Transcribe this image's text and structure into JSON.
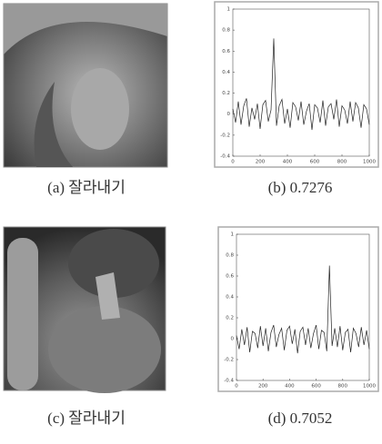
{
  "captions": [
    "(a)  잘라내기",
    "(b)  0.7276",
    "(c)  잘라내기",
    "(d)  0.7052"
  ],
  "chart_data": [
    {
      "type": "line",
      "x": [
        0,
        20,
        40,
        60,
        80,
        100,
        120,
        140,
        160,
        180,
        200,
        220,
        240,
        260,
        280,
        300,
        320,
        340,
        360,
        380,
        400,
        420,
        440,
        460,
        480,
        500,
        520,
        540,
        560,
        580,
        600,
        620,
        640,
        660,
        680,
        700,
        720,
        740,
        760,
        780,
        800,
        820,
        840,
        860,
        880,
        900,
        920,
        940,
        960,
        980,
        1000
      ],
      "values": [
        0.05,
        -0.08,
        0.12,
        -0.1,
        0.08,
        0.15,
        -0.12,
        0.06,
        -0.05,
        0.1,
        -0.14,
        0.09,
        0.13,
        -0.07,
        0.04,
        0.72,
        -0.11,
        0.08,
        0.14,
        -0.09,
        0.05,
        -0.13,
        0.11,
        0.07,
        -0.06,
        0.12,
        -0.1,
        0.03,
        0.1,
        -0.15,
        0.09,
        0.06,
        -0.08,
        0.13,
        -0.11,
        0.07,
        0.1,
        -0.05,
        0.14,
        -0.12,
        0.08,
        0.04,
        -0.09,
        0.12,
        -0.07,
        0.11,
        0.06,
        -0.13,
        0.09,
        0.05,
        -0.1
      ],
      "color": "#222222",
      "xlim": [
        0,
        1000
      ],
      "ylim": [
        -0.4,
        1
      ],
      "xticks": [
        0,
        200,
        400,
        600,
        800,
        1000
      ],
      "yticks": [
        -0.4,
        -0.2,
        0,
        0.2,
        0.4,
        0.6,
        0.8,
        1
      ]
    },
    {
      "type": "line",
      "x": [
        0,
        20,
        40,
        60,
        80,
        100,
        120,
        140,
        160,
        180,
        200,
        220,
        240,
        260,
        280,
        300,
        320,
        340,
        360,
        380,
        400,
        420,
        440,
        460,
        480,
        500,
        520,
        540,
        560,
        580,
        600,
        620,
        640,
        660,
        680,
        700,
        720,
        740,
        760,
        780,
        800,
        820,
        840,
        860,
        880,
        900,
        920,
        940,
        960,
        980,
        1000
      ],
      "values": [
        0.03,
        -0.1,
        0.09,
        -0.06,
        0.11,
        -0.13,
        0.07,
        0.05,
        -0.09,
        0.12,
        -0.07,
        0.1,
        -0.12,
        0.06,
        0.13,
        -0.08,
        0.04,
        0.1,
        -0.11,
        0.08,
        0.12,
        -0.05,
        0.09,
        -0.14,
        0.07,
        0.11,
        -0.06,
        0.1,
        -0.09,
        0.05,
        0.13,
        -0.1,
        0.08,
        0.06,
        -0.12,
        0.7,
        -0.07,
        0.1,
        -0.08,
        0.12,
        -0.11,
        0.06,
        0.09,
        -0.13,
        0.1,
        0.05,
        -0.08,
        0.11,
        -0.06,
        0.08,
        -0.1
      ],
      "color": "#222222",
      "xlim": [
        0,
        1000
      ],
      "ylim": [
        -0.4,
        1
      ],
      "xticks": [
        0,
        200,
        400,
        600,
        800,
        1000
      ],
      "yticks": [
        -0.4,
        -0.2,
        0,
        0.2,
        0.4,
        0.6,
        0.8,
        1
      ]
    }
  ]
}
